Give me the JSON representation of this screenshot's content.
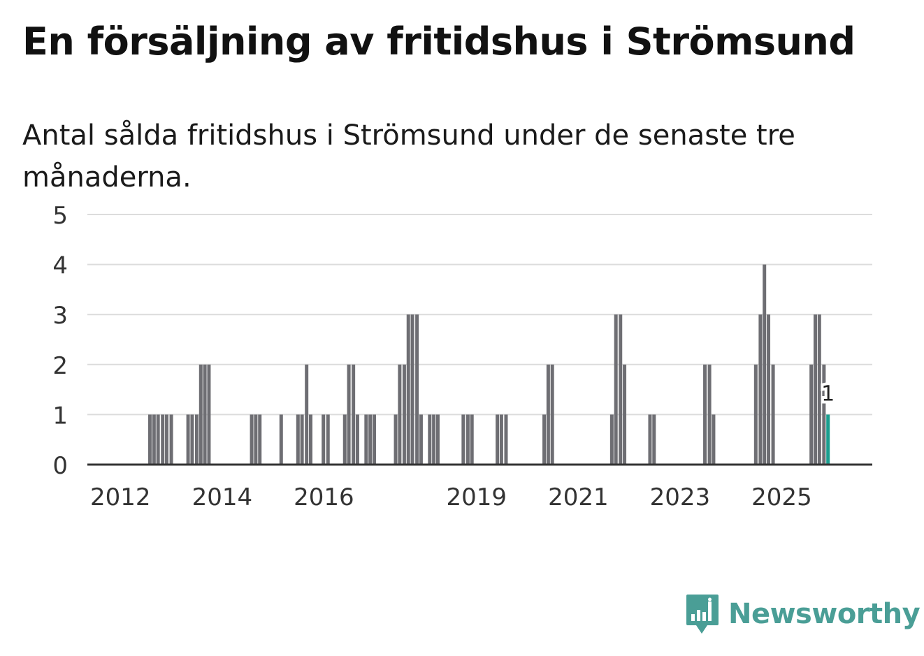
{
  "title": "En försäljning av fritidshus i Strömsund",
  "subtitle": "Antal sålda fritidshus i Strömsund under de senaste tre månaderna.",
  "brand": {
    "name": "Newsworthy",
    "icon": "bar-chart-speech-bubble-icon",
    "color": "#4a9e96"
  },
  "chart_data": {
    "type": "bar",
    "title": "En försäljning av fritidshus i Strömsund",
    "subtitle": "Antal sålda fritidshus i Strömsund under de senaste tre månaderna.",
    "xlabel": "",
    "ylabel": "",
    "ylim": [
      0,
      5
    ],
    "yticks": [
      0,
      1,
      2,
      3,
      4,
      5
    ],
    "grid": true,
    "x_domain": [
      2011.35,
      2026.78
    ],
    "xticks": [
      {
        "label": "2012",
        "value": 2012
      },
      {
        "label": "2014",
        "value": 2014
      },
      {
        "label": "2016",
        "value": 2016
      },
      {
        "label": "2019",
        "value": 2019
      },
      {
        "label": "2021",
        "value": 2021
      },
      {
        "label": "2023",
        "value": 2023
      },
      {
        "label": "2025",
        "value": 2025
      }
    ],
    "bar_color": "#6e6e73",
    "highlight_color": "#1a9e8f",
    "highlight_label": "1",
    "points": [
      {
        "x": 2012.58,
        "y": 1
      },
      {
        "x": 2012.66,
        "y": 1
      },
      {
        "x": 2012.74,
        "y": 1
      },
      {
        "x": 2012.83,
        "y": 1
      },
      {
        "x": 2012.91,
        "y": 1
      },
      {
        "x": 2013.0,
        "y": 1
      },
      {
        "x": 2013.33,
        "y": 1
      },
      {
        "x": 2013.41,
        "y": 1
      },
      {
        "x": 2013.5,
        "y": 1
      },
      {
        "x": 2013.58,
        "y": 2
      },
      {
        "x": 2013.66,
        "y": 2
      },
      {
        "x": 2013.74,
        "y": 2
      },
      {
        "x": 2014.58,
        "y": 1
      },
      {
        "x": 2014.66,
        "y": 1
      },
      {
        "x": 2014.74,
        "y": 1
      },
      {
        "x": 2015.16,
        "y": 1
      },
      {
        "x": 2015.49,
        "y": 1
      },
      {
        "x": 2015.57,
        "y": 1
      },
      {
        "x": 2015.66,
        "y": 2
      },
      {
        "x": 2015.74,
        "y": 1
      },
      {
        "x": 2015.99,
        "y": 1
      },
      {
        "x": 2016.08,
        "y": 1
      },
      {
        "x": 2016.41,
        "y": 1
      },
      {
        "x": 2016.49,
        "y": 2
      },
      {
        "x": 2016.58,
        "y": 2
      },
      {
        "x": 2016.66,
        "y": 1
      },
      {
        "x": 2016.83,
        "y": 1
      },
      {
        "x": 2016.91,
        "y": 1
      },
      {
        "x": 2016.99,
        "y": 1
      },
      {
        "x": 2017.41,
        "y": 1
      },
      {
        "x": 2017.49,
        "y": 2
      },
      {
        "x": 2017.58,
        "y": 2
      },
      {
        "x": 2017.66,
        "y": 3
      },
      {
        "x": 2017.74,
        "y": 3
      },
      {
        "x": 2017.83,
        "y": 3
      },
      {
        "x": 2017.91,
        "y": 1
      },
      {
        "x": 2018.08,
        "y": 1
      },
      {
        "x": 2018.16,
        "y": 1
      },
      {
        "x": 2018.24,
        "y": 1
      },
      {
        "x": 2018.74,
        "y": 1
      },
      {
        "x": 2018.83,
        "y": 1
      },
      {
        "x": 2018.91,
        "y": 1
      },
      {
        "x": 2019.41,
        "y": 1
      },
      {
        "x": 2019.49,
        "y": 1
      },
      {
        "x": 2019.58,
        "y": 1
      },
      {
        "x": 2020.33,
        "y": 1
      },
      {
        "x": 2020.41,
        "y": 2
      },
      {
        "x": 2020.49,
        "y": 2
      },
      {
        "x": 2021.66,
        "y": 1
      },
      {
        "x": 2021.74,
        "y": 3
      },
      {
        "x": 2021.83,
        "y": 3
      },
      {
        "x": 2021.91,
        "y": 2
      },
      {
        "x": 2022.41,
        "y": 1
      },
      {
        "x": 2022.49,
        "y": 1
      },
      {
        "x": 2023.49,
        "y": 2
      },
      {
        "x": 2023.58,
        "y": 2
      },
      {
        "x": 2023.66,
        "y": 1
      },
      {
        "x": 2024.49,
        "y": 2
      },
      {
        "x": 2024.58,
        "y": 3
      },
      {
        "x": 2024.66,
        "y": 4
      },
      {
        "x": 2024.74,
        "y": 3
      },
      {
        "x": 2024.83,
        "y": 2
      },
      {
        "x": 2025.58,
        "y": 2
      },
      {
        "x": 2025.66,
        "y": 3
      },
      {
        "x": 2025.74,
        "y": 3
      },
      {
        "x": 2025.83,
        "y": 2
      },
      {
        "x": 2025.91,
        "y": 1,
        "highlight": true
      }
    ]
  }
}
